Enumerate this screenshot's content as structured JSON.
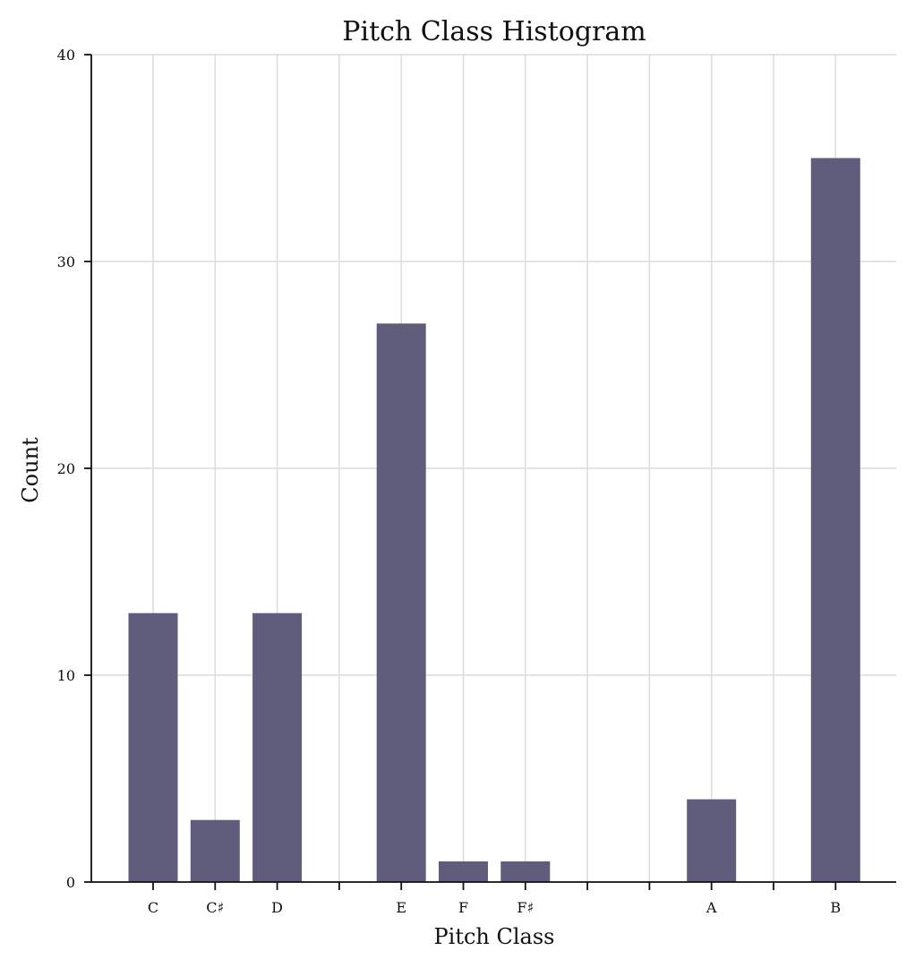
{
  "chart_data": {
    "type": "bar",
    "title": "Pitch Class Histogram",
    "xlabel": "Pitch Class",
    "ylabel": "Count",
    "categories": [
      "C",
      "C♯",
      "D",
      "",
      "E",
      "F",
      "F♯",
      "",
      "",
      "A",
      "",
      "B"
    ],
    "values": [
      13,
      3,
      13,
      0,
      27,
      1,
      1,
      0,
      0,
      4,
      0,
      35
    ],
    "ylim": [
      0,
      40
    ],
    "yticks": [
      0,
      10,
      20,
      30,
      40
    ],
    "grid": true,
    "colors": {
      "bar": "#5f5c7c",
      "grid": "#dcdcdc",
      "axis": "#111111"
    }
  }
}
